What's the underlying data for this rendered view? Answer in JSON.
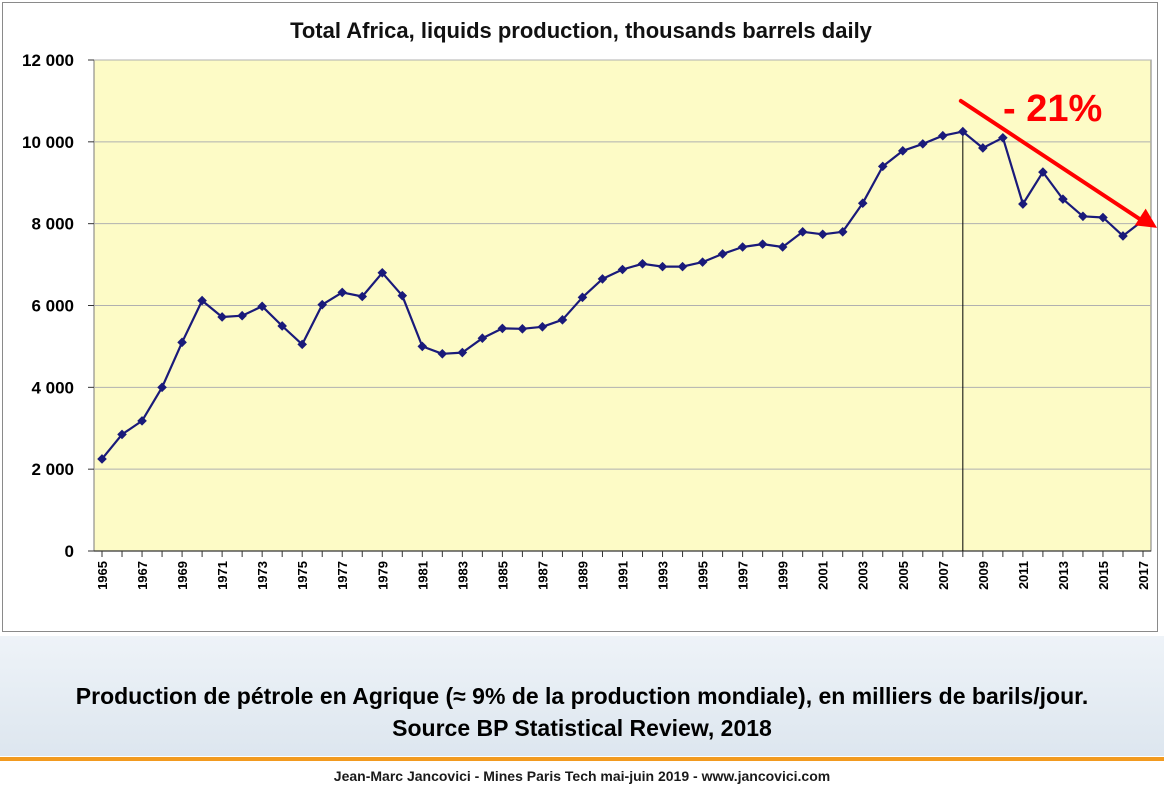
{
  "chart_data": {
    "type": "line",
    "title": "Total Africa, liquids production, thousands barrels daily",
    "x": [
      1965,
      1966,
      1967,
      1968,
      1969,
      1970,
      1971,
      1972,
      1973,
      1974,
      1975,
      1976,
      1977,
      1978,
      1979,
      1980,
      1981,
      1982,
      1983,
      1984,
      1985,
      1986,
      1987,
      1988,
      1989,
      1990,
      1991,
      1992,
      1993,
      1994,
      1995,
      1996,
      1997,
      1998,
      1999,
      2000,
      2001,
      2002,
      2003,
      2004,
      2005,
      2006,
      2007,
      2008,
      2009,
      2010,
      2011,
      2012,
      2013,
      2014,
      2015,
      2016,
      2017
    ],
    "series": [
      {
        "values": [
          2250,
          2850,
          3180,
          4000,
          5100,
          6120,
          5720,
          5750,
          5980,
          5500,
          5050,
          6020,
          6320,
          6220,
          6800,
          6240,
          5000,
          4820,
          4850,
          5200,
          5440,
          5430,
          5480,
          5650,
          6200,
          6650,
          6880,
          7020,
          6950,
          6950,
          7060,
          7260,
          7430,
          7500,
          7430,
          7800,
          7740,
          7800,
          8500,
          9400,
          9780,
          9950,
          10150,
          10250,
          9850,
          10100,
          8480,
          9260,
          8600,
          8180,
          8150,
          7700,
          8080
        ]
      }
    ],
    "x_tick_labels": [
      "1965",
      "1967",
      "1969",
      "1971",
      "1973",
      "1975",
      "1977",
      "1979",
      "1981",
      "1983",
      "1985",
      "1987",
      "1989",
      "1991",
      "1993",
      "1995",
      "1997",
      "1999",
      "2001",
      "2003",
      "2005",
      "2007",
      "2009",
      "2011",
      "2013",
      "2015",
      "2017"
    ],
    "y_tick_labels": [
      "0",
      "2 000",
      "4 000",
      "6 000",
      "8 000",
      "10 000",
      "12 000"
    ],
    "y_ticks": [
      0,
      2000,
      4000,
      6000,
      8000,
      10000,
      12000
    ],
    "ylim": [
      0,
      12000
    ],
    "xlim": [
      1965,
      2017
    ],
    "grid": true,
    "reference_line_x": 2008,
    "annotation": {
      "text": "- 21%",
      "arrow_from": {
        "x": 2008,
        "y": 11000
      },
      "arrow_to": {
        "x": 2018,
        "y": 7800
      }
    },
    "colors": {
      "line": "#1a1a7a",
      "plot_background": "#fdfbc6",
      "grid": "#b0b0b0",
      "annotation": "#ff0000"
    }
  },
  "caption": "Production de pétrole en Agrique (≈ 9% de la production mondiale), en milliers de barils/jour. Source BP Statistical Review, 2018",
  "footer": "Jean-Marc Jancovici - Mines Paris Tech mai-juin 2019 - www.jancovici.com"
}
